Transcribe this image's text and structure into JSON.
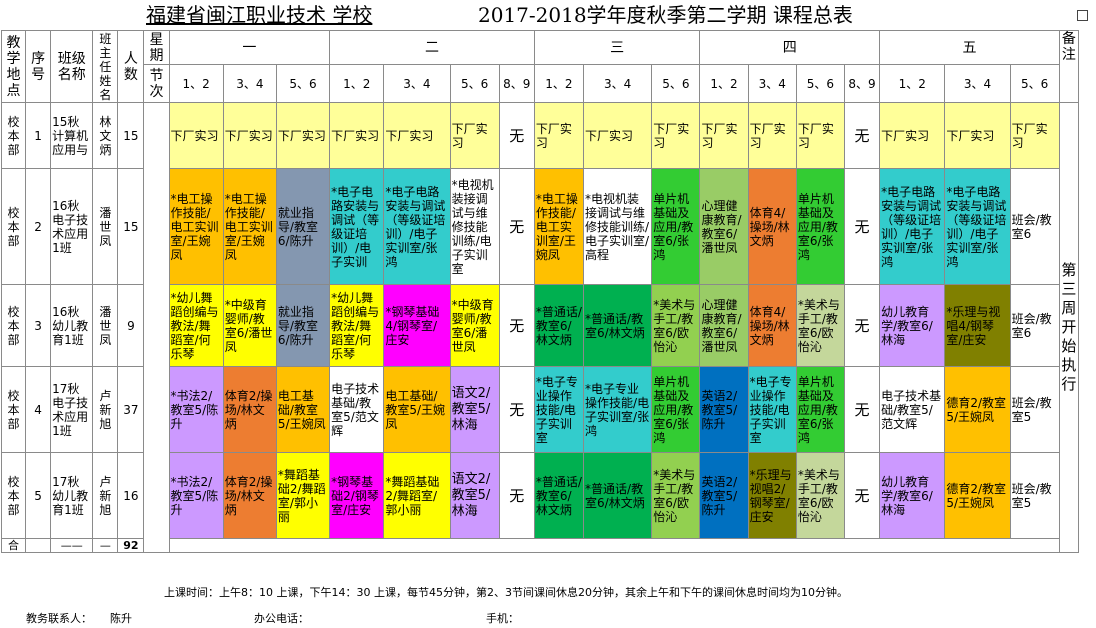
{
  "title": {
    "left": "福建省闽江职业技术 学校",
    "right": "2017-2018学年度秋季第二学期 课程总表"
  },
  "header": {
    "campus": "教学地点",
    "seq": "序号",
    "class_name": "班级名称",
    "teacher": "班主任姓名",
    "count": "人数",
    "weekday": "星期",
    "period": "节次",
    "remark": "备注",
    "days": [
      "一",
      "二",
      "三",
      "四",
      "五"
    ],
    "slots": [
      "1、2",
      "3、4",
      "5、6",
      "1、2",
      "3、4",
      "5、6",
      "8、9",
      "1、2",
      "3、4",
      "5、6",
      "1、2",
      "3、4",
      "5、6",
      "8、9",
      "1、2",
      "3、4",
      "5、6"
    ]
  },
  "rows": [
    {
      "campus": "校本部",
      "seq": "1",
      "class_name": "15秋计算机应用与",
      "teacher": "林文炳",
      "count": "15",
      "cells": [
        {
          "text": "下厂实习",
          "color": "#FFFF99"
        },
        {
          "text": "下厂实习",
          "color": "#FFFF99"
        },
        {
          "text": "下厂实习",
          "color": "#FFFF99"
        },
        {
          "text": "下厂实习",
          "color": "#FFFF99"
        },
        {
          "text": "下厂实习",
          "color": "#FFFF99"
        },
        {
          "text": "下厂实习",
          "color": "#FFFF99"
        },
        {
          "text": "无",
          "color": "#FFFFFF"
        },
        {
          "text": "下厂实习",
          "color": "#FFFF99"
        },
        {
          "text": "下厂实习",
          "color": "#FFFF99"
        },
        {
          "text": "下厂实习",
          "color": "#FFFF99"
        },
        {
          "text": "下厂实习",
          "color": "#FFFF99"
        },
        {
          "text": "下厂实习",
          "color": "#FFFF99"
        },
        {
          "text": "下厂实习",
          "color": "#FFFF99"
        },
        {
          "text": "无",
          "color": "#FFFFFF"
        },
        {
          "text": "下厂实习",
          "color": "#FFFF99"
        },
        {
          "text": "下厂实习",
          "color": "#FFFF99"
        },
        {
          "text": "下厂实习",
          "color": "#FFFF99"
        }
      ]
    },
    {
      "campus": "校本部",
      "seq": "2",
      "class_name": "16秋电子技术应用1班",
      "teacher": "潘世凤",
      "count": "15",
      "cells": [
        {
          "text": "*电工操作技能/电工实训室/王婉凤",
          "color": "#FFC000"
        },
        {
          "text": "*电工操作技能/电工实训室/王婉凤",
          "color": "#FFC000"
        },
        {
          "text": "就业指导/教室6/陈升",
          "color": "#8497B0"
        },
        {
          "text": "*电子电路安装与调试（等级证培训）/电子实训",
          "color": "#33CCCC"
        },
        {
          "text": "*电子电路安装与调试（等级证培训）/电子实训室/张 鸿",
          "color": "#33CCCC"
        },
        {
          "text": "*电视机装接调试与维修技能训练/电子实训室",
          "color": "#FFFFFF"
        },
        {
          "text": "无",
          "color": "#FFFFFF"
        },
        {
          "text": "*电工操作技能/电工实训室/王婉凤",
          "color": "#FFC000"
        },
        {
          "text": "*电视机装接调试与维修技能训练/电子实训室/高程",
          "color": "#FFFFFF"
        },
        {
          "text": "单片机基础及应用/教室6/张 鸿",
          "color": "#33CC33"
        },
        {
          "text": "心理健康教育/教室6/潘世凤",
          "color": "#99CC66"
        },
        {
          "text": "体育4/操场/林文炳",
          "color": "#ED7D31"
        },
        {
          "text": "单片机基础及应用/教室6/张鸿",
          "color": "#33CC33"
        },
        {
          "text": "无",
          "color": "#FFFFFF"
        },
        {
          "text": "*电子电路安装与调试（等级证培训）/电子实训室/张 鸿",
          "color": "#33CCCC"
        },
        {
          "text": "*电子电路安装与调试（等级证培训）/电子实训室/张 鸿",
          "color": "#33CCCC"
        },
        {
          "text": "班会/教室6",
          "color": "#FFFFFF"
        }
      ]
    },
    {
      "campus": "校本部",
      "seq": "3",
      "class_name": "16秋幼儿教育1班",
      "teacher": "潘世凤",
      "count": "9",
      "cells": [
        {
          "text": "*幼儿舞蹈创编与教法/舞蹈室/何乐琴",
          "color": "#FFFF00"
        },
        {
          "text": "*中级育婴师/教室6/潘世凤",
          "color": "#FFFF00"
        },
        {
          "text": "就业指导/教室6/陈升",
          "color": "#8497B0"
        },
        {
          "text": "*幼儿舞蹈创编与教法/舞蹈室/何乐琴",
          "color": "#FFFF00"
        },
        {
          "text": "*钢琴基础4/钢琴室/庄安",
          "color": "#FF00FF"
        },
        {
          "text": "*中级育婴师/教室6/潘世凤",
          "color": "#FFFF00"
        },
        {
          "text": "无",
          "color": "#FFFFFF"
        },
        {
          "text": "*普通话/教室6/林文炳",
          "color": "#00B050"
        },
        {
          "text": "*普通话/教室6/林文炳",
          "color": "#00B050"
        },
        {
          "text": "*美术与手工/教室6/欧怡沁",
          "color": "#92D050"
        },
        {
          "text": "心理健康教育/教室6/潘世凤",
          "color": "#99CC66"
        },
        {
          "text": "体育4/操场/林文炳",
          "color": "#ED7D31"
        },
        {
          "text": "*美术与手工/教室6/欧怡沁",
          "color": "#C4D79B"
        },
        {
          "text": "无",
          "color": "#FFFFFF"
        },
        {
          "text": "幼儿教育学/教室6/林海",
          "color": "#CC99FF"
        },
        {
          "text": "*乐理与视唱4/钢琴室/庄安",
          "color": "#808000"
        },
        {
          "text": "班会/教室6",
          "color": "#FFFFFF"
        }
      ]
    },
    {
      "campus": "校本部",
      "seq": "4",
      "class_name": "17秋电子技术应用1班",
      "teacher": "卢新旭",
      "count": "37",
      "cells": [
        {
          "text": "*书法2/教室5/陈升",
          "color": "#CC99FF"
        },
        {
          "text": "体育2/操场/林文炳",
          "color": "#ED7D31"
        },
        {
          "text": "电工基础/教室5/王婉凤",
          "color": "#FFC000"
        },
        {
          "text": "电子技术基础/教室5/范文辉",
          "color": "#FFFFFF"
        },
        {
          "text": "电工基础/教室5/王婉凤",
          "color": "#FFC000"
        },
        {
          "text": "语文2/教室5/林海",
          "color": "#CC99FF",
          "big": true
        },
        {
          "text": "无",
          "color": "#FFFFFF"
        },
        {
          "text": "*电子专业操作技能/电子实训室",
          "color": "#33CCCC"
        },
        {
          "text": "*电子专业操作技能/电子实训室/张 鸿",
          "color": "#33CCCC"
        },
        {
          "text": "单片机基础及应用/教室6/张鸿",
          "color": "#33CC33"
        },
        {
          "text": "英语2/教室5/陈升",
          "color": "#0070C0"
        },
        {
          "text": "*电子专业操作技能/电子实训室",
          "color": "#33CCCC"
        },
        {
          "text": "单片机基础及应用/教室6/张鸿",
          "color": "#33CC33"
        },
        {
          "text": "无",
          "color": "#FFFFFF"
        },
        {
          "text": "电子技术基础/教室5/范文辉",
          "color": "#FFFFFF"
        },
        {
          "text": "德育2/教室5/王婉凤",
          "color": "#FFC000"
        },
        {
          "text": "班会/教室5",
          "color": "#FFFFFF"
        }
      ]
    },
    {
      "campus": "校本部",
      "seq": "5",
      "class_name": "17秋幼儿教育1班",
      "teacher": "卢新旭",
      "count": "16",
      "cells": [
        {
          "text": "*书法2/教室5/陈升",
          "color": "#CC99FF"
        },
        {
          "text": "体育2/操场/林文炳",
          "color": "#ED7D31"
        },
        {
          "text": "*舞蹈基础2/舞蹈室/郭小丽",
          "color": "#FFFF00"
        },
        {
          "text": "*钢琴基础2/钢琴室/庄安",
          "color": "#FF00FF"
        },
        {
          "text": "*舞蹈基础2/舞蹈室/郭小丽",
          "color": "#FFFF00"
        },
        {
          "text": "语文2/教室5/林海",
          "color": "#CC99FF",
          "big": true
        },
        {
          "text": "无",
          "color": "#FFFFFF"
        },
        {
          "text": "*普通话/教室6/林文炳",
          "color": "#00B050"
        },
        {
          "text": "*普通话/教室6/林文炳",
          "color": "#00B050"
        },
        {
          "text": "*美术与手工/教室6/欧怡沁",
          "color": "#92D050"
        },
        {
          "text": "英语2/教室5/陈升",
          "color": "#0070C0"
        },
        {
          "text": "*乐理与视唱2/钢琴室/庄安",
          "color": "#808000"
        },
        {
          "text": "*美术与手工/教室6/欧怡沁",
          "color": "#C4D79B"
        },
        {
          "text": "无",
          "color": "#FFFFFF"
        },
        {
          "text": "幼儿教育学/教室6/林海",
          "color": "#CC99FF"
        },
        {
          "text": "德育2/教室5/王婉凤",
          "color": "#FFC000"
        },
        {
          "text": "班会/教室5",
          "color": "#FFFFFF"
        }
      ]
    }
  ],
  "remark_text": "第三周开始执行",
  "total": {
    "label": "合",
    "class_name": "——",
    "teacher": "—",
    "count": "92"
  },
  "notes": {
    "schedule": "上课时间：上午8：10 上课，下午14：30 上课，每节45分钟，第2、3节间课间休息20分钟，其余上午和下午的课间休息时间均为10分钟。",
    "contact_label": "教务联系人：",
    "contact_name": "陈升",
    "office_label": "办公电话：",
    "mobile_label": "手机："
  }
}
